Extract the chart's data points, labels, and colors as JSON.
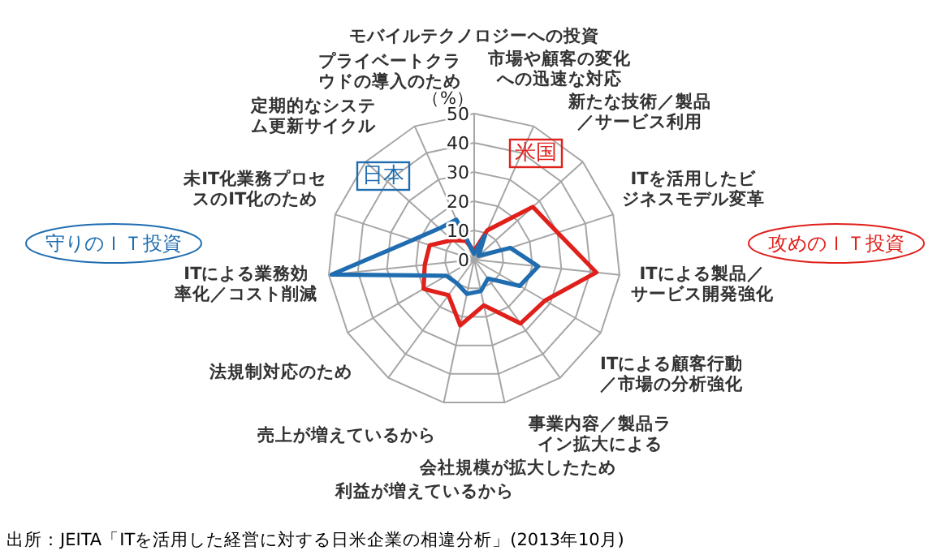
{
  "chart_data": {
    "type": "radar",
    "ylabel": "（%）",
    "categories": [
      "モバイルテクノロジーへの投資",
      "市場や顧客の変化への迅速な対応",
      "新たな技術／製品／サービス利用",
      "ITを活用したビジネスモデル変革",
      "ITによる製品／サービス開発強化",
      "ITによる顧客行動／市場の分析強化",
      "事業内容／製品ライン拡大による",
      "会社規模が拡大したため",
      "利益が増えているから",
      "売上が増えているから",
      "法規制対応のため",
      "ITによる業務効率化／コスト削減",
      "未IT化業務プロセスのIT化のため",
      "定期的なシステム更新サイクル",
      "プライベートクラウドの導入のため"
    ],
    "series": [
      {
        "name": "米国",
        "color": "#e0201b",
        "values": [
          3,
          11,
          27,
          30,
          42,
          28,
          27,
          16,
          23,
          15,
          20,
          17,
          16,
          10,
          7
        ]
      },
      {
        "name": "日本",
        "color": "#1f6db0",
        "values": [
          2,
          9,
          2,
          13,
          22,
          18,
          8,
          11,
          12,
          10,
          11,
          49,
          22,
          16,
          15
        ]
      }
    ],
    "ylim": [
      0,
      50
    ],
    "yticks": [
      0,
      10,
      20,
      30,
      40,
      50
    ],
    "grid": true,
    "marker": "none",
    "line_style": "solid",
    "annotations": [
      "攻めのＩＴ投資",
      "守りのＩＴ投資",
      "出所：JEITA「ITを活用した経営に対する日米企業の相違分析」(2013年10月)"
    ]
  }
}
